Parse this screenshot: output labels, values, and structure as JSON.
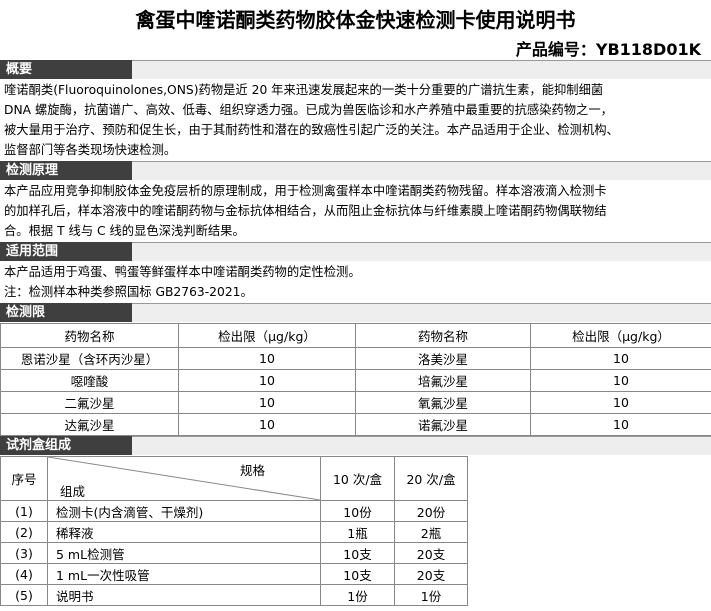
{
  "header": {
    "title": "禽蛋中喹诺酮类药物胶体金快速检测卡使用说明书",
    "product_code": "产品编号：YB118D01K"
  },
  "sections": [
    {
      "title": "概要",
      "lines": [
        "喹诺酮类(Fluoroquinolones,ONS)药物是近  20 年来迅速发展起来的一类十分重要的广谱抗生素，能抑制细菌",
        "DNA  螺旋酶，抗菌谱广、高效、低毒、组织穿透力强。已成为兽医临诊和水产养殖中最重要的抗感染药物之一，",
        "被大量用于治疗、预防和促生长，由于其耐药性和潜在的致癌性引起广泛的关注。本产品适用于企业、检测机构、",
        "监督部门等各类现场快速检测。"
      ]
    },
    {
      "title": "检测原理",
      "lines": [
        "本产品应用竞争抑制胶体金免疫层析的原理制成，用于检测禽蛋样本中喹诺酮类药物残留。样本溶液滴入检测卡",
        "的加样孔后，样本溶液中的喹诺酮药物与金标抗体相结合，从而阻止金标抗体与纤维素膜上喹诺酮药物偶联物结",
        "合。根据 T 线与 C 线的显色深浅判断结果。"
      ]
    },
    {
      "title": "适用范围",
      "lines": [
        "本产品适用于鸡蛋、鸭蛋等鲜蛋样本中喹诺酮类药物的定性检测。",
        "注：检测样本种类参照国标 GB2763-2021。"
      ]
    }
  ],
  "detection_limit": {
    "title": "检测限",
    "columns": [
      "药物名称",
      "检出限（μg/kg）",
      "药物名称",
      "检出限（μg/kg）"
    ],
    "rows": [
      [
        "恩诺沙星（含环丙沙星）",
        "10",
        "洛美沙星",
        "10"
      ],
      [
        "噁喹酸",
        "10",
        "培氟沙星",
        "10"
      ],
      [
        "二氟沙星",
        "10",
        "氧氟沙星",
        "10"
      ],
      [
        "达氟沙星",
        "10",
        "诺氟沙星",
        "10"
      ]
    ]
  },
  "kit": {
    "title": "试剂盒组成",
    "header": {
      "index": "序号",
      "spec": "规格",
      "component": "组成",
      "col10": "10 次/盒",
      "col20": "20 次/盒"
    },
    "rows": [
      [
        "(1)",
        "检测卡(内含滴管、干燥剂)",
        "10份",
        "20份"
      ],
      [
        "(2)",
        "稀释液",
        "1瓶",
        "2瓶"
      ],
      [
        "(3)",
        "5 mL检测管",
        "10支",
        "20支"
      ],
      [
        "(4)",
        "1 mL一次性吸管",
        "10支",
        "20支"
      ],
      [
        "(5)",
        "说明书",
        "1份",
        "1份"
      ]
    ]
  }
}
